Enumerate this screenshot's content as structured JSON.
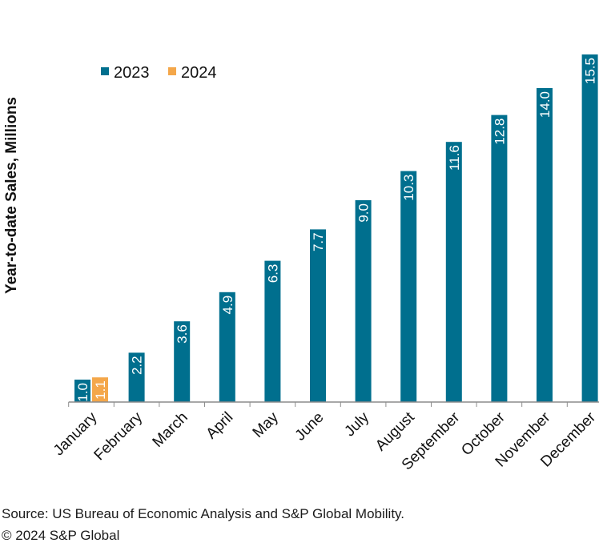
{
  "chart_data": {
    "type": "bar",
    "title": "",
    "xlabel": "",
    "ylabel": "Year-to-date Sales, Millions",
    "ylim": [
      0,
      15.5
    ],
    "grid": false,
    "legend_position": "top-left",
    "categories": [
      "January",
      "February",
      "March",
      "April",
      "May",
      "June",
      "July",
      "August",
      "September",
      "October",
      "November",
      "December"
    ],
    "series": [
      {
        "name": "2023",
        "color": "#006f8e",
        "values": [
          1.0,
          2.2,
          3.6,
          4.9,
          6.3,
          7.7,
          9.0,
          10.3,
          11.6,
          12.8,
          14.0,
          15.5
        ],
        "labels": [
          "1.0",
          "2.2",
          "3.6",
          "4.9",
          "6.3",
          "7.7",
          "9.0",
          "10.3",
          "11.6",
          "12.8",
          "14.0",
          "15.5"
        ]
      },
      {
        "name": "2024",
        "color": "#f4a74a",
        "values": [
          1.1,
          null,
          null,
          null,
          null,
          null,
          null,
          null,
          null,
          null,
          null,
          null
        ],
        "labels": [
          "1.1",
          "",
          "",
          "",
          "",
          "",
          "",
          "",
          "",
          "",
          "",
          ""
        ]
      }
    ]
  },
  "footer": {
    "source": "Source: US Bureau of Economic Analysis and S&P Global Mobility.",
    "copyright": "© 2024 S&P Global"
  }
}
